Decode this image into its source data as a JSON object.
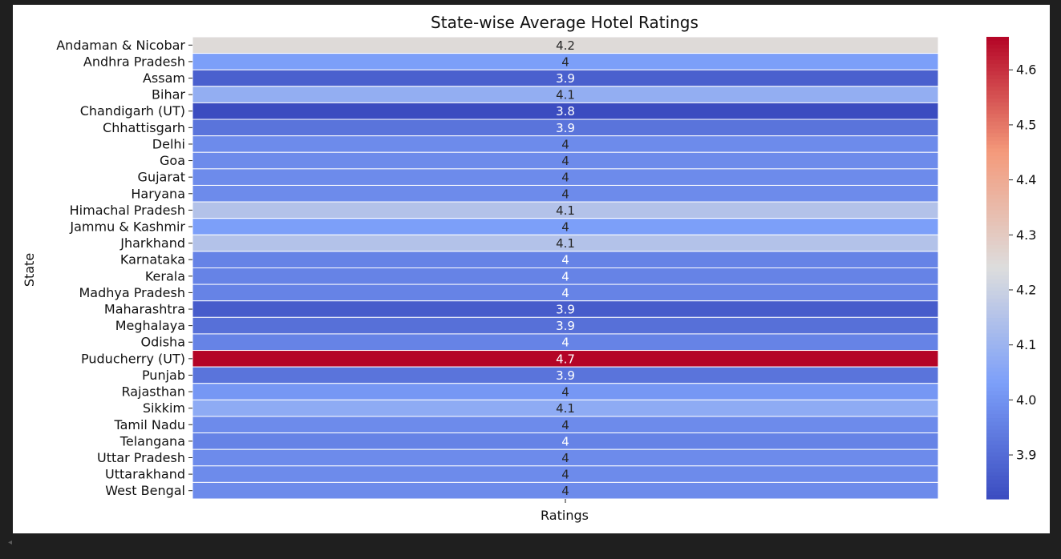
{
  "chart_data": {
    "type": "heatmap",
    "title": "State-wise Average Hotel Ratings",
    "xlabel": "Ratings",
    "ylabel": "State",
    "columns": [
      "Ratings"
    ],
    "rows": [
      "Andaman & Nicobar",
      "Andhra Pradesh",
      "Assam",
      "Bihar",
      "Chandigarh (UT)",
      "Chhattisgarh",
      "Delhi",
      "Goa",
      "Gujarat",
      "Haryana",
      "Himachal Pradesh",
      "Jammu & Kashmir",
      "Jharkhand",
      "Karnataka",
      "Kerala",
      "Madhya Pradesh",
      "Maharashtra",
      "Meghalaya",
      "Odisha",
      "Puducherry (UT)",
      "Punjab",
      "Rajasthan",
      "Sikkim",
      "Tamil Nadu",
      "Telangana",
      "Uttar Pradesh",
      "Uttarakhand",
      "West Bengal"
    ],
    "values": [
      4.25,
      4.03,
      3.87,
      4.08,
      3.82,
      3.92,
      3.98,
      3.98,
      3.98,
      3.98,
      4.15,
      4.03,
      4.15,
      3.96,
      3.96,
      3.96,
      3.86,
      3.91,
      3.96,
      4.66,
      3.92,
      4.01,
      4.07,
      3.98,
      3.96,
      3.98,
      3.98,
      3.98
    ],
    "annotations": [
      "4.2",
      "4",
      "3.9",
      "4.1",
      "3.8",
      "3.9",
      "4",
      "4",
      "4",
      "4",
      "4.1",
      "4",
      "4.1",
      "4",
      "4",
      "4",
      "3.9",
      "3.9",
      "4",
      "4.7",
      "3.9",
      "4",
      "4.1",
      "4",
      "4",
      "4",
      "4",
      "4"
    ],
    "colormap": "coolwarm",
    "colorbar": {
      "min": 3.82,
      "max": 4.66,
      "ticks": [
        "3.9",
        "4.0",
        "4.1",
        "4.2",
        "4.3",
        "4.4",
        "4.5",
        "4.6"
      ]
    },
    "grid": false,
    "legend": "colorbar-right"
  },
  "ui": {
    "scroll_left_glyph": "◂"
  }
}
